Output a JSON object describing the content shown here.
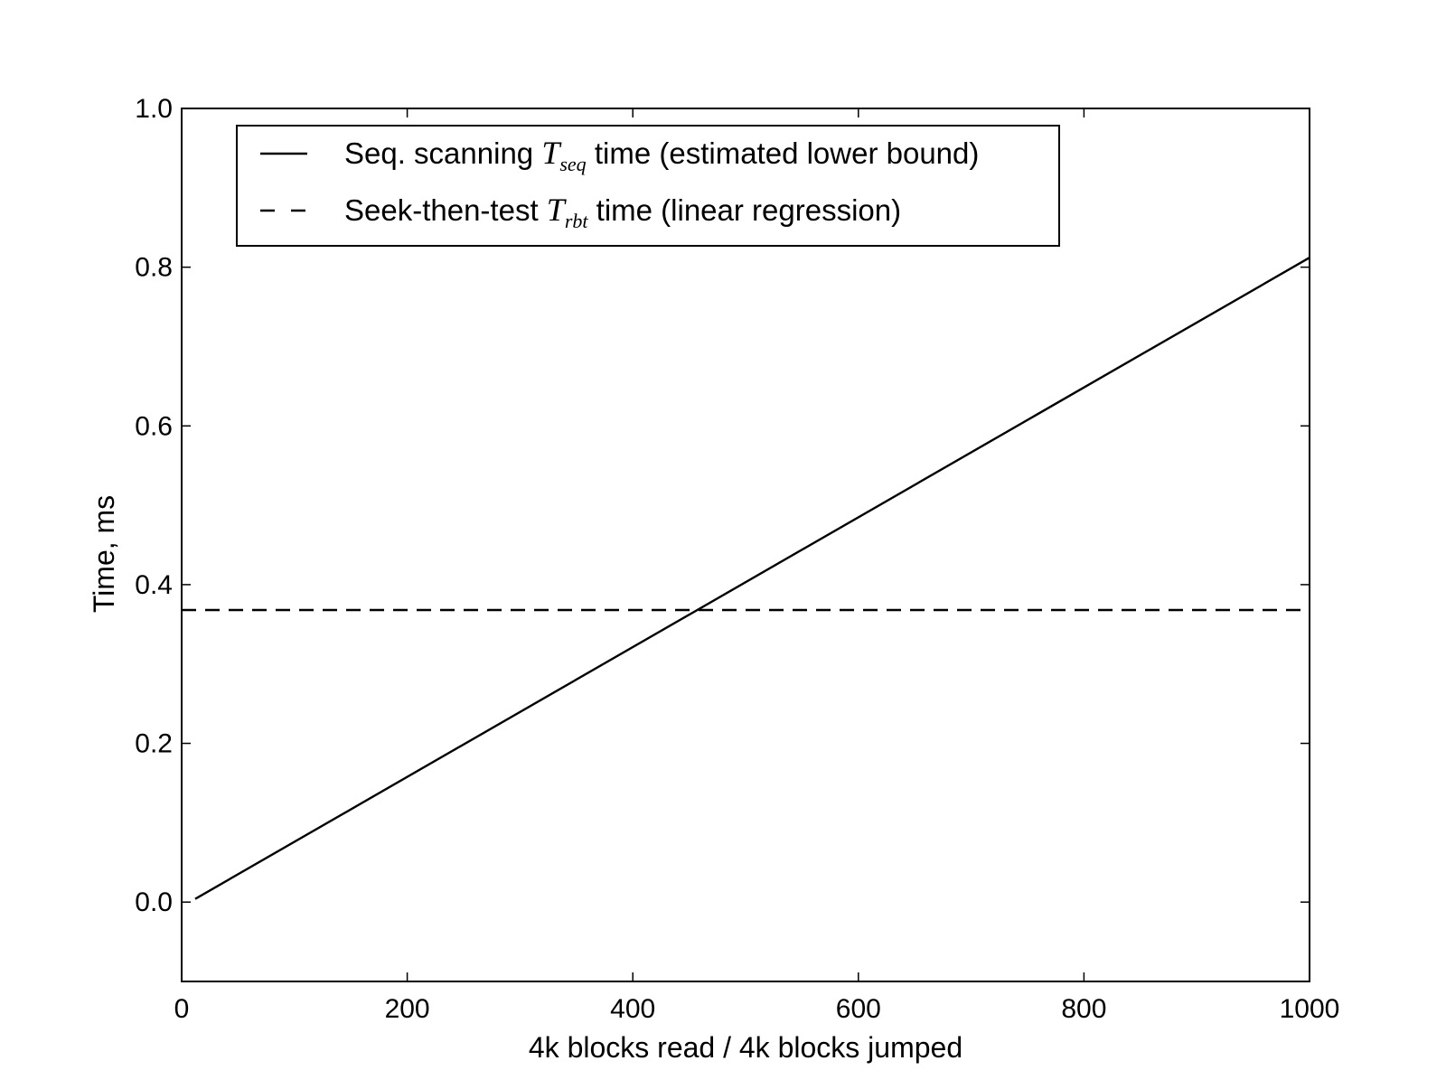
{
  "chart_data": {
    "type": "line",
    "xlabel": "4k blocks read / 4k blocks jumped",
    "ylabel": "Time, ms",
    "xlim": [
      0,
      1000
    ],
    "ylim": [
      -0.1,
      1.0
    ],
    "x_ticks": [
      0,
      200,
      400,
      600,
      800,
      1000
    ],
    "x_tick_labels": [
      "0",
      "200",
      "400",
      "600",
      "800",
      "1000"
    ],
    "y_ticks": [
      0.0,
      0.2,
      0.4,
      0.6,
      0.8,
      1.0
    ],
    "y_tick_labels": [
      "0.0",
      "0.2",
      "0.4",
      "0.6",
      "0.8",
      "1.0"
    ],
    "grid": false,
    "legend_placement": "top-left",
    "series": [
      {
        "name": "Seq. scanning T_seq time (estimated lower bound)",
        "legend": {
          "before": "Seq. scanning ",
          "symbol": "T",
          "sub": "seq",
          "after": " time (estimated lower bound)"
        },
        "style": "solid",
        "color": "#000000",
        "x": [
          12,
          1000
        ],
        "y": [
          0.004,
          0.812
        ]
      },
      {
        "name": "Seek-then-test T_rbt time (linear regression)",
        "legend": {
          "before": "Seek-then-test ",
          "symbol": "T",
          "sub": "rbt",
          "after": " time (linear regression)"
        },
        "style": "dashed",
        "color": "#000000",
        "x": [
          0,
          1000
        ],
        "y": [
          0.368,
          0.368
        ]
      }
    ]
  }
}
